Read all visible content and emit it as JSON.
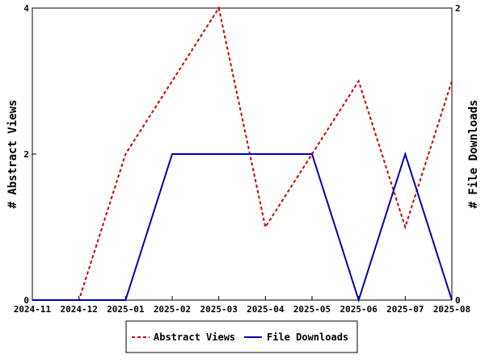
{
  "chart_data": {
    "type": "line",
    "x": [
      "2024-11",
      "2024-12",
      "2025-01",
      "2025-02",
      "2025-03",
      "2025-04",
      "2025-05",
      "2025-06",
      "2025-07",
      "2025-08"
    ],
    "series": [
      {
        "name": "Abstract Views",
        "axis": "left",
        "color": "#cc0000",
        "dashed": true,
        "values": [
          0,
          0,
          2,
          3,
          4,
          1,
          2,
          3,
          1,
          3
        ]
      },
      {
        "name": "File Downloads",
        "axis": "right",
        "color": "#0000aa",
        "dashed": false,
        "values": [
          0,
          0,
          0,
          1,
          1,
          1,
          1,
          0,
          1,
          0
        ]
      }
    ],
    "ylabel": "# Abstract Views",
    "y2label": "# File Downloads",
    "ylim": [
      0,
      4
    ],
    "y2lim": [
      0,
      2
    ],
    "yticks": [
      "0",
      "2",
      "4"
    ],
    "y2ticks": [
      "0",
      "2"
    ],
    "grid": false,
    "legend_position": "bottom"
  }
}
